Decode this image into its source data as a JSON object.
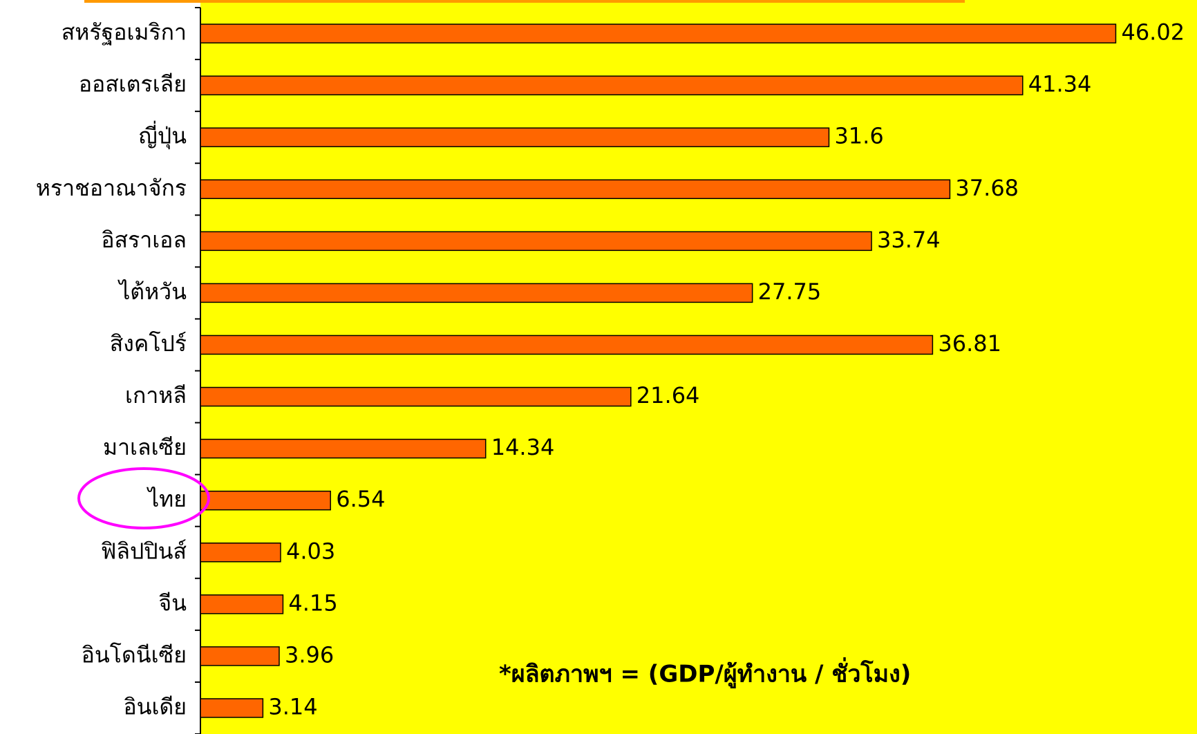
{
  "chart_data": {
    "type": "barh",
    "categories": [
      "สหรัฐอเมริกา",
      "ออสเตรเลีย",
      "ญี่ปุ่น",
      "หราชอาณาจักร",
      "อิสราเอล",
      "ไต้หวัน",
      "สิงคโปร์",
      "เกาหลี",
      "มาเลเซีย",
      "ไทย",
      "ฟิลิปปินส์",
      "จีน",
      "อินโดนีเซีย",
      "อินเดีย"
    ],
    "values": [
      46.02,
      41.34,
      31.6,
      37.68,
      33.74,
      27.75,
      36.81,
      21.64,
      14.34,
      6.54,
      4.03,
      4.15,
      3.96,
      3.14
    ],
    "color": "#ff6600",
    "xlim": [
      0,
      50
    ],
    "annotation": "*ผลิตภาพฯ =  (GDP/ผู้ทำงาน / ชั่วโมง)"
  }
}
